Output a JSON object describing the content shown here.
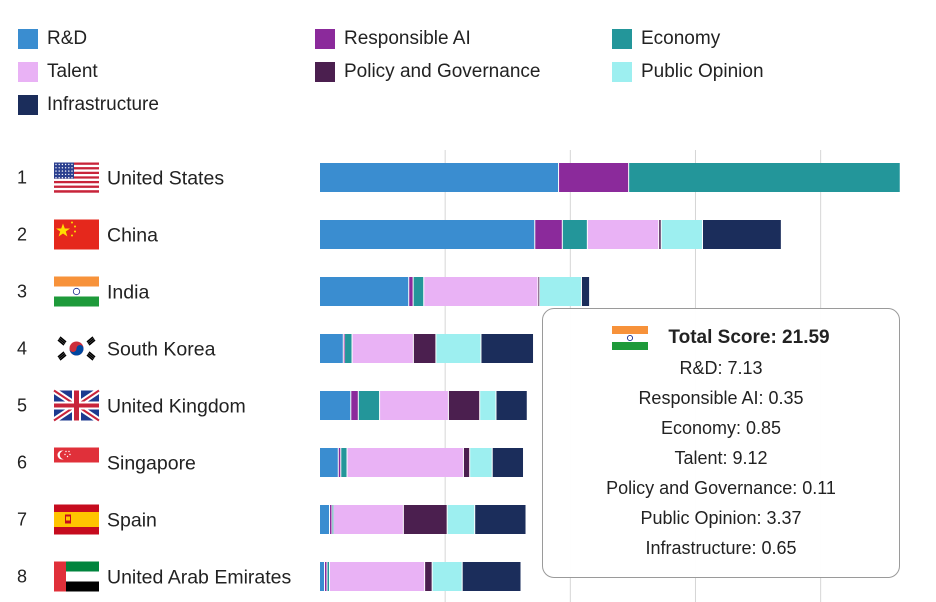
{
  "chart_data": {
    "type": "bar",
    "orientation": "horizontal",
    "stacked": true,
    "title": "",
    "xlabel": "",
    "ylabel": "",
    "xlim": [
      0,
      46.5
    ],
    "grid": true,
    "grid_interval": 10,
    "legend_position": "top",
    "series": [
      {
        "name": "R&D",
        "color": "#3a8dd0",
        "values": [
          19.1,
          17.2,
          7.13,
          1.9,
          2.5,
          1.5,
          0.8,
          0.4
        ]
      },
      {
        "name": "Responsible AI",
        "color": "#8b2a9b",
        "values": [
          5.6,
          2.2,
          0.35,
          0.1,
          0.6,
          0.2,
          0.2,
          0.2
        ]
      },
      {
        "name": "Economy",
        "color": "#23969a",
        "values": [
          21.7,
          2.0,
          0.85,
          0.6,
          1.7,
          0.5,
          0.1,
          0.2
        ]
      },
      {
        "name": "Talent",
        "color": "#e9b2f5",
        "values": [
          0,
          5.7,
          9.12,
          4.9,
          5.5,
          9.3,
          5.6,
          7.6
        ]
      },
      {
        "name": "Policy and Governance",
        "color": "#4b1f4f",
        "values": [
          0,
          0.2,
          0.11,
          1.8,
          2.5,
          0.5,
          3.5,
          0.6
        ]
      },
      {
        "name": "Public Opinion",
        "color": "#9deff0",
        "values": [
          0,
          3.3,
          3.37,
          3.6,
          1.3,
          1.8,
          2.2,
          2.4
        ]
      },
      {
        "name": "Infrastructure",
        "color": "#1b2d5b",
        "values": [
          0,
          6.3,
          0.65,
          4.2,
          2.5,
          2.5,
          4.1,
          4.7
        ]
      }
    ],
    "categories": [
      {
        "rank": "1",
        "country": "United States",
        "flag": "us"
      },
      {
        "rank": "2",
        "country": "China",
        "flag": "cn"
      },
      {
        "rank": "3",
        "country": "India",
        "flag": "in"
      },
      {
        "rank": "4",
        "country": "South Korea",
        "flag": "kr"
      },
      {
        "rank": "5",
        "country": "United Kingdom",
        "flag": "gb"
      },
      {
        "rank": "6",
        "country": "Singapore",
        "flag": "sg"
      },
      {
        "rank": "7",
        "country": "Spain",
        "flag": "es"
      },
      {
        "rank": "8",
        "country": "United Arab Emirates",
        "flag": "ae"
      }
    ]
  },
  "legend": [
    {
      "label": "R&D",
      "color": "#3a8dd0"
    },
    {
      "label": "Responsible AI",
      "color": "#8b2a9b"
    },
    {
      "label": "Economy",
      "color": "#23969a"
    },
    {
      "label": "Talent",
      "color": "#e9b2f5"
    },
    {
      "label": "Policy and Governance",
      "color": "#4b1f4f"
    },
    {
      "label": "Public Opinion",
      "color": "#9deff0"
    },
    {
      "label": "Infrastructure",
      "color": "#1b2d5b"
    }
  ],
  "tooltip": {
    "flag": "in",
    "title": "Total Score: 21.59",
    "lines": [
      "R&D: 7.13",
      "Responsible AI: 0.35",
      "Economy: 0.85",
      "Talent: 9.12",
      "Policy and Governance: 0.11",
      "Public Opinion: 3.37",
      "Infrastructure: 0.65"
    ]
  }
}
